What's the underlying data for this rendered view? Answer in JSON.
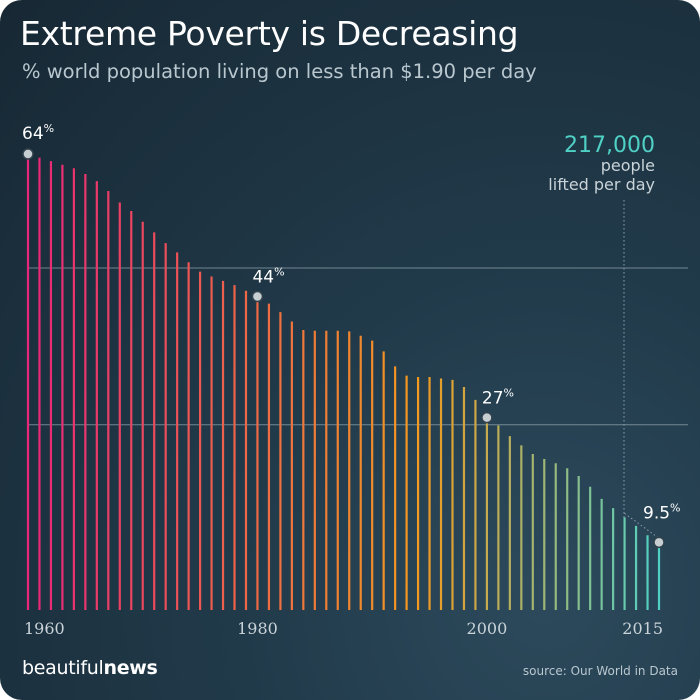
{
  "header": {
    "title": "Extreme Poverty is Decreasing",
    "subtitle": "% world population living on less than $1.90 per day"
  },
  "callout": {
    "value": "217,000",
    "line1": "people",
    "line2": "lifted per day",
    "color": "#4fd1c5"
  },
  "footer": {
    "brand_regular": "beautiful",
    "brand_bold": "news",
    "source": "source: Our World in Data"
  },
  "colors": {
    "start": "#e8267a",
    "mid": "#f39a1f",
    "end": "#4fd1c5",
    "gridline": "#8da1ab"
  },
  "chart_data": {
    "type": "bar",
    "title": "Extreme Poverty is Decreasing",
    "subtitle": "% world population living on less than $1.90 per day",
    "x": [
      1960,
      1961,
      1962,
      1963,
      1964,
      1965,
      1966,
      1967,
      1968,
      1969,
      1970,
      1971,
      1972,
      1973,
      1974,
      1975,
      1976,
      1977,
      1978,
      1979,
      1980,
      1981,
      1982,
      1983,
      1984,
      1985,
      1986,
      1987,
      1988,
      1989,
      1990,
      1991,
      1992,
      1993,
      1994,
      1995,
      1996,
      1997,
      1998,
      1999,
      2000,
      2001,
      2002,
      2003,
      2004,
      2005,
      2006,
      2007,
      2008,
      2009,
      2010,
      2011,
      2012,
      2013,
      2014,
      2015
    ],
    "values": [
      64,
      63.5,
      63,
      62.5,
      62,
      61.2,
      60.2,
      58.8,
      57.2,
      56,
      54.5,
      53,
      51.5,
      50.2,
      48.8,
      47.5,
      46.8,
      46.2,
      45.6,
      44.8,
      44,
      43,
      41.8,
      40.5,
      39.3,
      39.2,
      39.2,
      39.2,
      39.1,
      38.5,
      37.8,
      36.3,
      34.2,
      32.9,
      32.7,
      32.7,
      32.5,
      32.3,
      31.3,
      29.5,
      27,
      25.9,
      24.4,
      23.1,
      21.9,
      21.2,
      20.6,
      19.9,
      18.8,
      17.3,
      15.6,
      14.3,
      13,
      11.8,
      10.5,
      9.5
    ],
    "xticks": [
      "1960",
      "1980",
      "2000",
      "2015"
    ],
    "ylim": [
      0,
      64
    ],
    "gridlines": [
      48,
      26
    ],
    "grid": "two horizontal lines",
    "annotations": [
      {
        "year": 1960,
        "value": "64",
        "unit": "%"
      },
      {
        "year": 1980,
        "value": "44",
        "unit": "%"
      },
      {
        "year": 2000,
        "value": "27",
        "unit": "%"
      },
      {
        "year": 2015,
        "value": "9.5",
        "unit": "%"
      }
    ]
  }
}
